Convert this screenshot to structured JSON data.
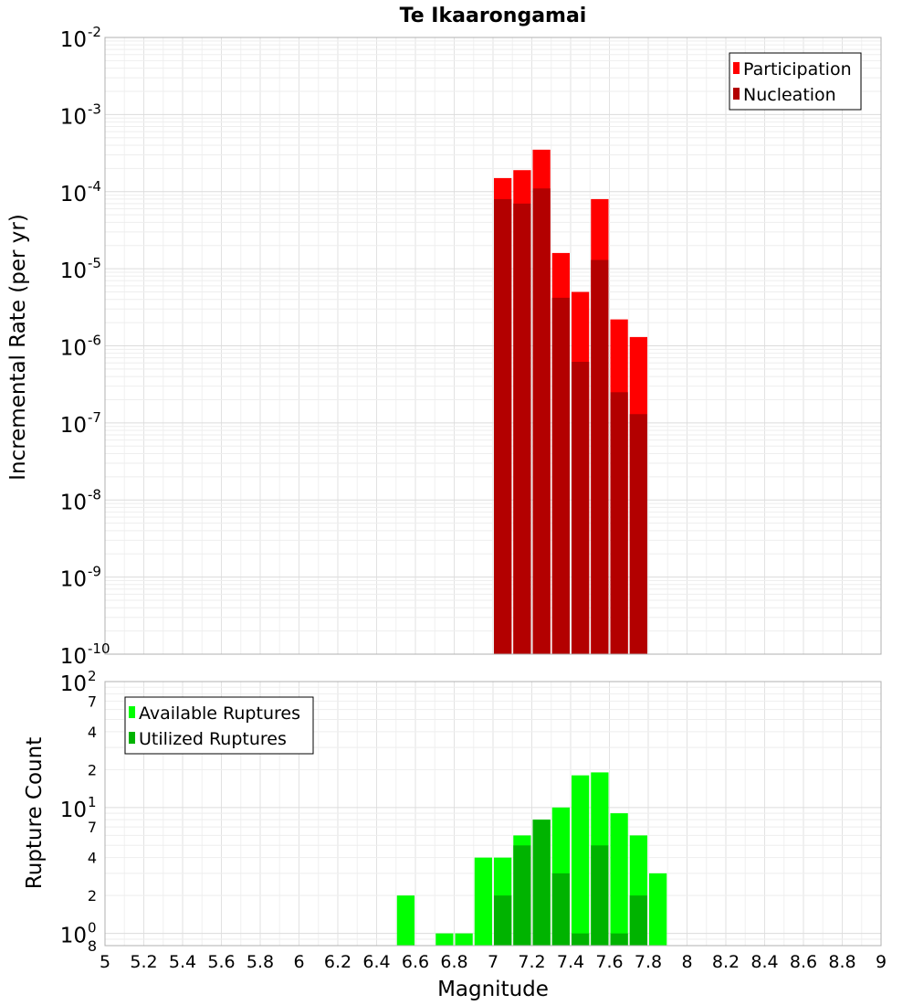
{
  "chart_data": {
    "title": "Te Ikaarongamai",
    "xlabel": "Magnitude",
    "x_ticks": [
      "5",
      "5.2",
      "5.4",
      "5.6",
      "5.8",
      "6",
      "6.2",
      "6.4",
      "6.6",
      "6.8",
      "7",
      "7.2",
      "7.4",
      "7.6",
      "7.8",
      "8",
      "8.2",
      "8.4",
      "8.6",
      "8.8",
      "9"
    ],
    "xlim": [
      5,
      9
    ],
    "bin_width": 0.1,
    "grid": true,
    "panels": [
      {
        "type": "bar",
        "ylabel": "Incremental Rate (per yr)",
        "yscale": "log",
        "ylim": [
          1e-10,
          0.01
        ],
        "y_ticks": [
          {
            "base": "10",
            "exp": "-2",
            "value": 0.01
          },
          {
            "base": "10",
            "exp": "-3",
            "value": 0.001
          },
          {
            "base": "10",
            "exp": "-4",
            "value": 0.0001
          },
          {
            "base": "10",
            "exp": "-5",
            "value": 1e-05
          },
          {
            "base": "10",
            "exp": "-6",
            "value": 1e-06
          },
          {
            "base": "10",
            "exp": "-7",
            "value": 1e-07
          },
          {
            "base": "10",
            "exp": "-8",
            "value": 1e-08
          },
          {
            "base": "10",
            "exp": "-9",
            "value": 1e-09
          },
          {
            "base": "10",
            "exp": "-10",
            "value": 1e-10
          }
        ],
        "legend_position": "top-right",
        "overlay": true,
        "series": [
          {
            "name": "Participation",
            "color": "#ff0000",
            "x": [
              7.05,
              7.15,
              7.25,
              7.35,
              7.45,
              7.55,
              7.65,
              7.75
            ],
            "values": [
              0.00015,
              0.00019,
              0.00035,
              1.6e-05,
              5e-06,
              8e-05,
              2.2e-06,
              1.3e-06
            ]
          },
          {
            "name": "Nucleation",
            "color": "#b30000",
            "x": [
              7.05,
              7.15,
              7.25,
              7.35,
              7.45,
              7.55,
              7.65,
              7.75
            ],
            "values": [
              8e-05,
              7e-05,
              0.00011,
              4.2e-06,
              6.2e-07,
              1.3e-05,
              2.5e-07,
              1.3e-07
            ]
          }
        ]
      },
      {
        "type": "bar",
        "ylabel": "Rupture Count",
        "yscale": "log",
        "ylim": [
          0.8,
          100
        ],
        "y_ticks": [
          {
            "base": "10",
            "exp": "2",
            "value": 100
          },
          {
            "base": "10",
            "exp": "1",
            "value": 10
          },
          {
            "base": "10",
            "exp": "0",
            "value": 1
          }
        ],
        "y_minor_ticks": [
          {
            "label": "7",
            "value": 70
          },
          {
            "label": "4",
            "value": 40
          },
          {
            "label": "2",
            "value": 20
          },
          {
            "label": "7",
            "value": 7
          },
          {
            "label": "4",
            "value": 4
          },
          {
            "label": "2",
            "value": 2
          },
          {
            "label": "8",
            "value": 0.8
          }
        ],
        "legend_position": "top-left",
        "overlay": true,
        "series": [
          {
            "name": "Available Ruptures",
            "color": "#00ff00",
            "x": [
              6.55,
              6.75,
              6.85,
              6.95,
              7.05,
              7.15,
              7.25,
              7.35,
              7.45,
              7.55,
              7.65,
              7.75,
              7.85
            ],
            "values": [
              2,
              1,
              1,
              4,
              4,
              6,
              8,
              10,
              18,
              19,
              9,
              6,
              3
            ]
          },
          {
            "name": "Utilized Ruptures",
            "color": "#00b300",
            "x": [
              7.05,
              7.15,
              7.25,
              7.35,
              7.45,
              7.55,
              7.65,
              7.75
            ],
            "values": [
              2,
              5,
              8,
              3,
              1,
              5,
              1,
              2
            ]
          }
        ]
      }
    ]
  }
}
